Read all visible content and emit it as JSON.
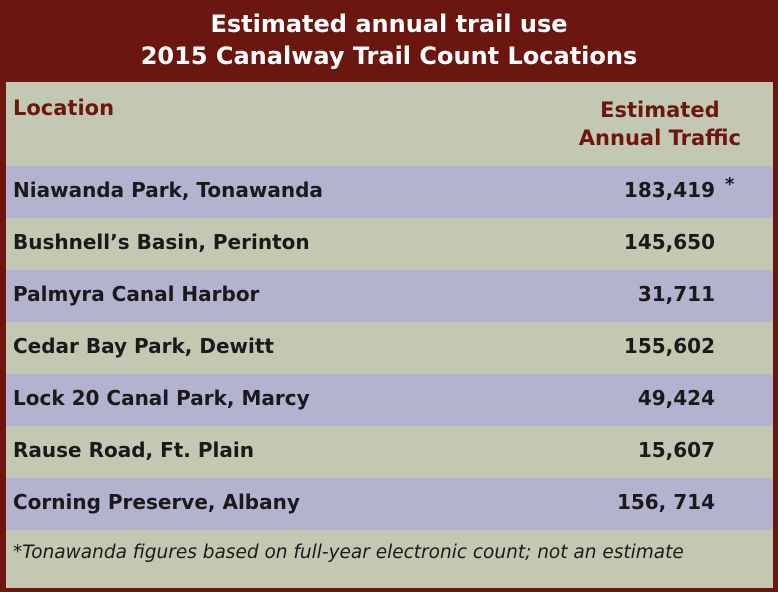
{
  "title": {
    "line1": "Estimated annual trail use",
    "line2": "2015 Canalway Trail Count Locations"
  },
  "header": {
    "location": "Location",
    "traffic_line1": "Estimated",
    "traffic_line2": "Annual Traffic"
  },
  "rows": [
    {
      "location": "Niawanda Park, Tonawanda",
      "traffic": "183,419",
      "mark": "*"
    },
    {
      "location": "Bushnell’s Basin, Perinton",
      "traffic": "145,650"
    },
    {
      "location": "Palmyra Canal Harbor",
      "traffic": "31,711"
    },
    {
      "location": "Cedar Bay Park, Dewitt",
      "traffic": "155,602"
    },
    {
      "location": "Lock 20 Canal Park, Marcy",
      "traffic": "49,424"
    },
    {
      "location": "Rause Road, Ft. Plain",
      "traffic": "15,607"
    },
    {
      "location": "Corning Preserve, Albany",
      "traffic": "156, 714"
    }
  ],
  "footnote": "*Tonawanda figures based on full-year electronic count; not an estimate",
  "colors": {
    "frame": "#6b1710",
    "row_lavender": "#b3b2cf",
    "row_green": "#c3c8b3",
    "header_text": "#6b1710"
  }
}
